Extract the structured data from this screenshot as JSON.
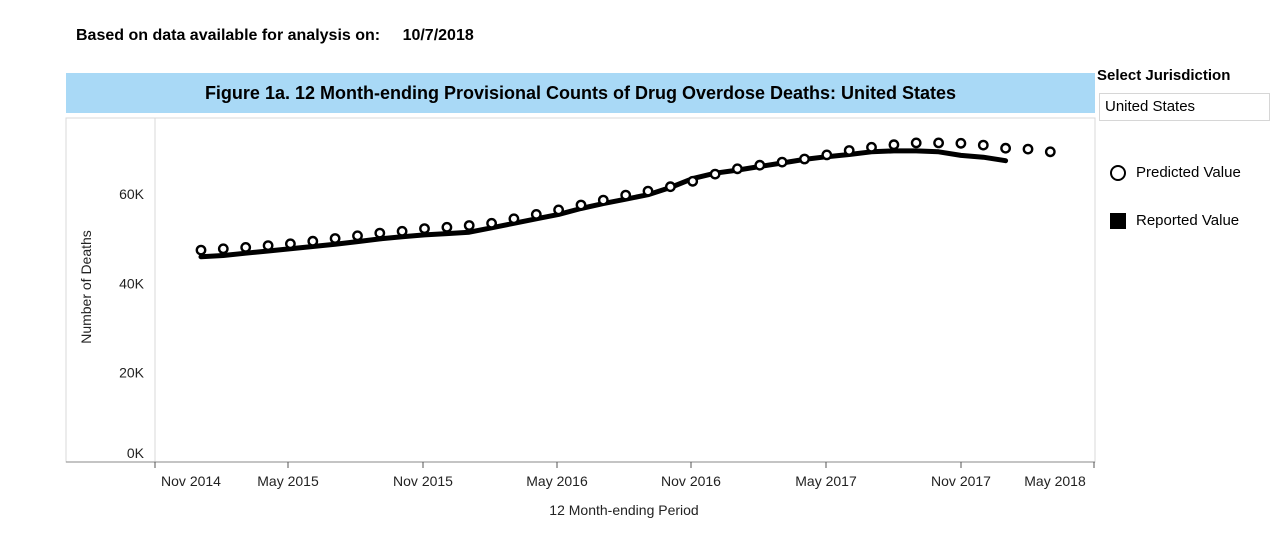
{
  "header": {
    "based_on_label": "Based on data available for analysis on:",
    "date": "10/7/2018"
  },
  "jurisdiction": {
    "label": "Select Jurisdiction",
    "value": "United States"
  },
  "legend": {
    "predicted": "Predicted Value",
    "reported": "Reported Value"
  },
  "chart_data": {
    "type": "line",
    "title": "Figure 1a. 12 Month-ending Provisional Counts of Drug Overdose Deaths: United States",
    "xlabel": "12 Month-ending Period",
    "ylabel": "Number of Deaths",
    "ylim": [
      0,
      77000
    ],
    "yticks": [
      {
        "value": 0,
        "label": "0K"
      },
      {
        "value": 20000,
        "label": "20K"
      },
      {
        "value": 40000,
        "label": "40K"
      },
      {
        "value": 60000,
        "label": "60K"
      }
    ],
    "xticks": [
      {
        "index": 0,
        "label": "Nov 2014"
      },
      {
        "index": 6,
        "label": "May 2015"
      },
      {
        "index": 12,
        "label": "Nov 2015"
      },
      {
        "index": 18,
        "label": "May 2016"
      },
      {
        "index": 24,
        "label": "Nov 2016"
      },
      {
        "index": 30,
        "label": "May 2017"
      },
      {
        "index": 36,
        "label": "Nov 2017"
      },
      {
        "index": 42,
        "label": "May 2018"
      }
    ],
    "x_start": "Dec 2014",
    "grid": false,
    "series": [
      {
        "name": "Predicted Value",
        "marker": "circle",
        "values": [
          49000,
          49300,
          49600,
          50000,
          50400,
          51000,
          51600,
          52200,
          52800,
          53200,
          53800,
          54100,
          54500,
          55000,
          56000,
          57000,
          58000,
          59100,
          60200,
          61300,
          62200,
          63200,
          64400,
          66000,
          67200,
          68000,
          68700,
          69400,
          70300,
          71300,
          72000,
          72600,
          73000,
          73000,
          72900,
          72500,
          71800,
          71600,
          71000
        ]
      },
      {
        "name": "Reported Value",
        "marker": "line",
        "values": [
          47500,
          47800,
          48300,
          48800,
          49300,
          49800,
          50300,
          50900,
          51500,
          52000,
          52400,
          52700,
          53000,
          54000,
          55000,
          56000,
          57000,
          58300,
          59400,
          60400,
          61400,
          63000,
          65000,
          66200,
          66900,
          67700,
          68500,
          69300,
          69900,
          70400,
          71000,
          71200,
          71200,
          71000,
          70200,
          69800,
          69000
        ]
      }
    ]
  }
}
